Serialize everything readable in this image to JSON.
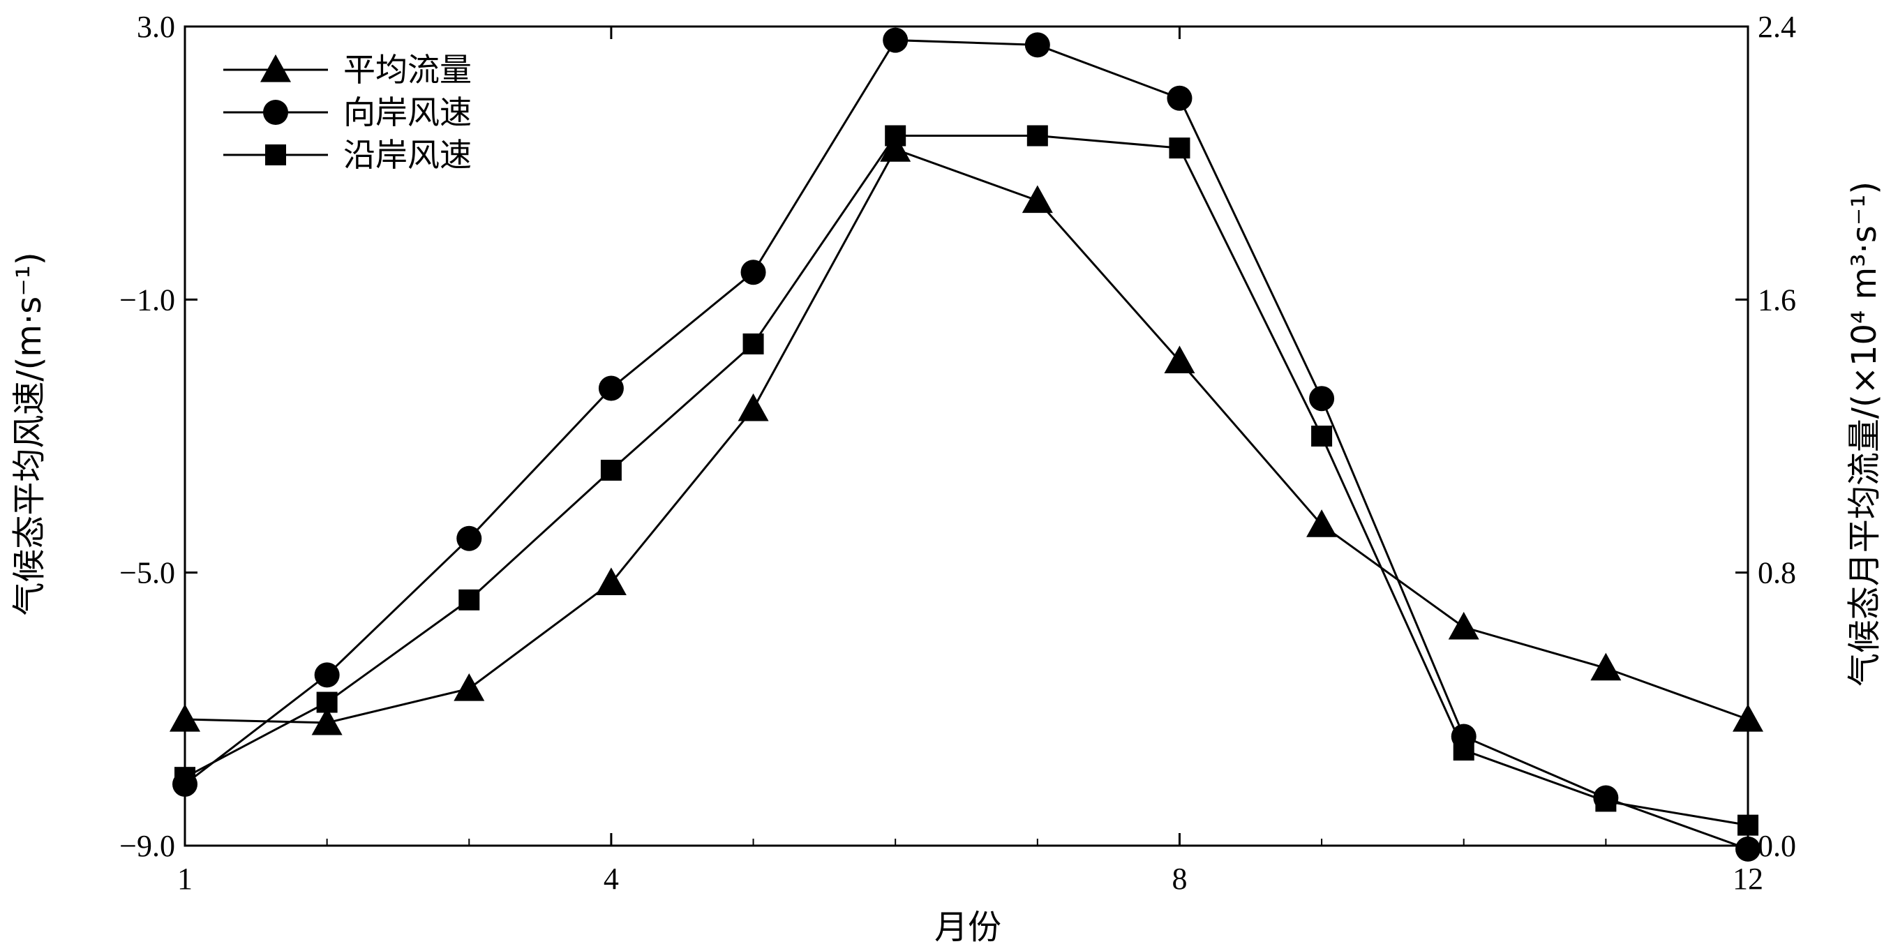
{
  "chart_data": {
    "type": "line",
    "xlabel": "月份",
    "ylabel_left": "气候态平均风速/(m·s⁻¹)",
    "ylabel_right": "气候态月平均流量/(×10⁴ m³·s⁻¹)",
    "x_ticks": [
      1,
      4,
      8,
      12
    ],
    "x_tick_labels": [
      "1",
      "4",
      "8",
      "12"
    ],
    "xlim": [
      1,
      12
    ],
    "y_left_ticks": [
      3.0,
      -1.0,
      -5.0,
      -9.0
    ],
    "y_left_tick_labels": [
      "3.0",
      "−1.0",
      "−5.0",
      "−9.0"
    ],
    "ylim_left": [
      -9,
      3
    ],
    "y_right_ticks": [
      2.4,
      1.6,
      0.8,
      0.0
    ],
    "y_right_tick_labels": [
      "2.4",
      "1.6",
      "0.8",
      "0.0"
    ],
    "ylim_right": [
      0,
      2.4
    ],
    "legend_position": "top-left",
    "x": [
      1,
      2,
      3,
      4,
      5,
      6,
      7,
      8,
      9,
      10,
      11,
      12
    ],
    "series": [
      {
        "name": "平均流量",
        "axis": "right",
        "marker": "triangle",
        "values": [
          0.37,
          0.36,
          0.46,
          0.77,
          1.28,
          2.04,
          1.89,
          1.42,
          0.94,
          0.64,
          0.52,
          0.37
        ]
      },
      {
        "name": "向岸风速",
        "axis": "left",
        "marker": "circle",
        "values": [
          -8.1,
          -6.5,
          -4.5,
          -2.3,
          -0.6,
          2.8,
          2.73,
          1.95,
          -2.45,
          -7.4,
          -8.3,
          -9.05
        ]
      },
      {
        "name": "沿岸风速",
        "axis": "left",
        "marker": "square",
        "values": [
          -8.0,
          -6.9,
          -5.4,
          -3.5,
          -1.65,
          1.4,
          1.4,
          1.22,
          -3.0,
          -7.6,
          -8.35,
          -8.7
        ]
      }
    ]
  }
}
